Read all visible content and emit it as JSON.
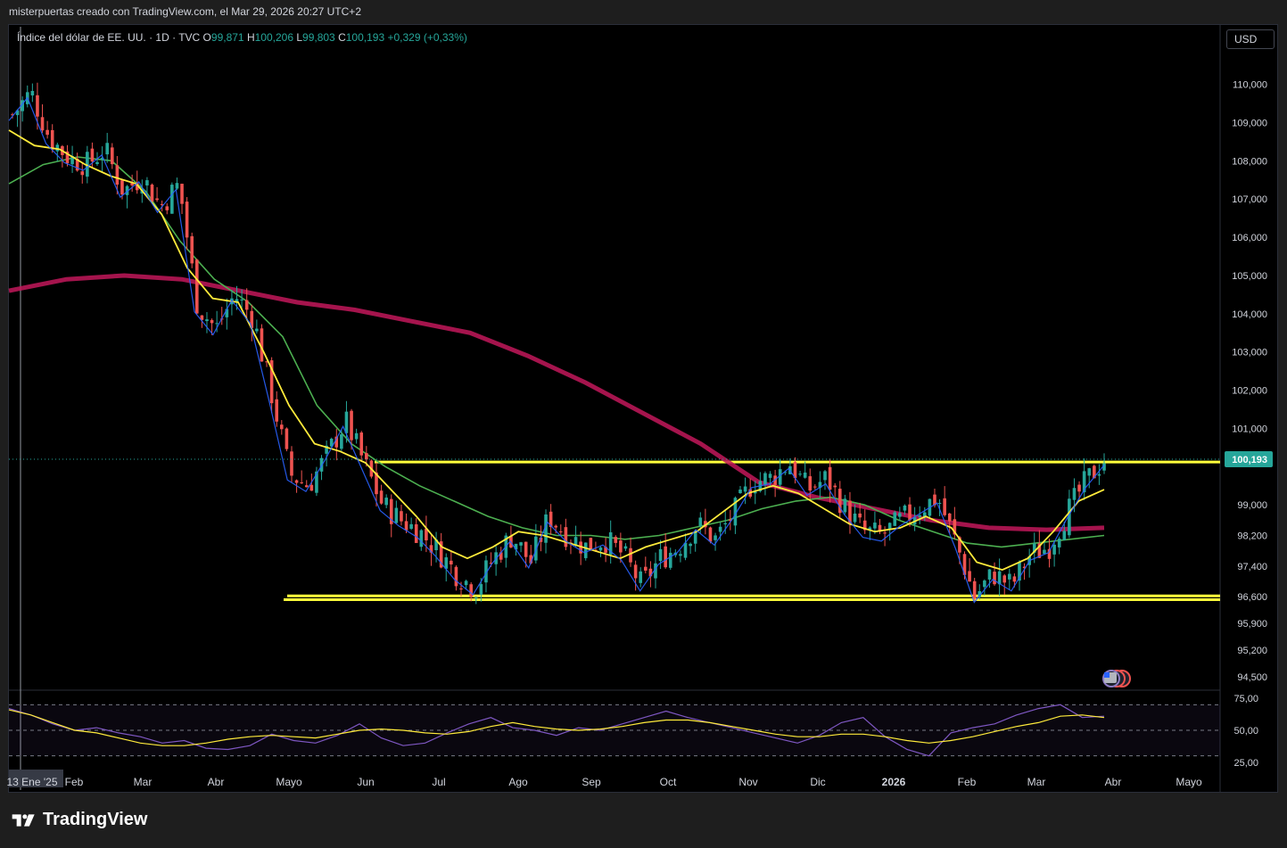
{
  "header": {
    "caption": "misterpuertas creado con TradingView.com, el Mar 29, 2026 20:27 UTC+2"
  },
  "symbol": {
    "name": "Índice del dólar de EE. UU. · 1D · TVC",
    "o_label": "O",
    "o_value": "99,871",
    "h_label": "H",
    "h_value": "100,206",
    "l_label": "L",
    "l_value": "99,803",
    "c_label": "C",
    "c_value": "100,193",
    "change": "+0,329 (+0,33%)"
  },
  "currency_button": "USD",
  "footer": {
    "brand": "TradingView"
  },
  "colors": {
    "background": "#000000",
    "up_candle": "#26a69a",
    "down_candle": "#ef5350",
    "yellow_ma": "#ffeb3b",
    "blue_ma": "#2962ff",
    "green_ma": "#4caf50",
    "red_ma": "#c2185b",
    "level_lines": "#ffff3b",
    "rsi": "#7e57c2",
    "rsi_ma": "#ffeb3b",
    "price_label_bg": "#26a69a"
  },
  "chart_data": {
    "type": "candlestick",
    "title": "Índice del dólar de EE. UU.",
    "timeframe": "1D",
    "source": "TVC",
    "last_price": 100.193,
    "last_price_label": "100,193",
    "ylim": [
      94.2,
      110.9
    ],
    "y_ticks": [
      {
        "value": 110.0,
        "label": "110,000"
      },
      {
        "value": 109.0,
        "label": "109,000"
      },
      {
        "value": 108.0,
        "label": "108,000"
      },
      {
        "value": 107.0,
        "label": "107,000"
      },
      {
        "value": 106.0,
        "label": "106,000"
      },
      {
        "value": 105.0,
        "label": "105,000"
      },
      {
        "value": 104.0,
        "label": "104,000"
      },
      {
        "value": 103.0,
        "label": "103,000"
      },
      {
        "value": 102.0,
        "label": "102,000"
      },
      {
        "value": 101.0,
        "label": "101,000"
      },
      {
        "value": 99.0,
        "label": "99,000"
      },
      {
        "value": 98.2,
        "label": "98,200"
      },
      {
        "value": 97.4,
        "label": "97,400"
      },
      {
        "value": 96.6,
        "label": "96,600"
      },
      {
        "value": 95.9,
        "label": "95,900"
      },
      {
        "value": 95.2,
        "label": "95,200"
      },
      {
        "value": 94.5,
        "label": "94,500"
      }
    ],
    "x_ticks": [
      "13 Ene '25",
      "Feb",
      "Mar",
      "Abr",
      "Mayo",
      "Jun",
      "Jul",
      "Ago",
      "Sep",
      "Oct",
      "Nov",
      "Dic",
      "2026",
      "Feb",
      "Mar",
      "Abr",
      "Mayo"
    ],
    "series": [
      {
        "name": "Price",
        "values": [
          109.2,
          109.8,
          108.6,
          108.1,
          107.9,
          108.3,
          107.2,
          107.6,
          106.8,
          107.4,
          104.2,
          103.6,
          104.5,
          103.9,
          101.9,
          99.8,
          99.5,
          100.3,
          101.2,
          100.1,
          99.0,
          98.6,
          98.3,
          97.8,
          97.2,
          96.8,
          97.6,
          98.2,
          97.5,
          98.7,
          98.2,
          97.9,
          98.1,
          97.7,
          96.9,
          97.6,
          97.9,
          98.5,
          98.1,
          98.8,
          99.6,
          99.7,
          100.1,
          99.4,
          99.7,
          98.9,
          98.3,
          98.2,
          98.6,
          98.9,
          99.2,
          98.0,
          96.6,
          97.2,
          96.9,
          97.7,
          97.9,
          98.8,
          99.6,
          100.193
        ]
      },
      {
        "name": "MA 20",
        "values": [
          108.8,
          108.4,
          108.3,
          107.9,
          107.6,
          107.4,
          106.6,
          105.2,
          104.4,
          104.3,
          103.0,
          101.6,
          100.6,
          100.4,
          100.1,
          99.4,
          98.7,
          97.9,
          97.6,
          97.9,
          98.3,
          98.2,
          98.0,
          97.8,
          97.6,
          97.9,
          98.1,
          98.3,
          98.8,
          99.3,
          99.5,
          99.3,
          98.9,
          98.5,
          98.3,
          98.4,
          98.7,
          98.4,
          97.5,
          97.3,
          97.6,
          98.3,
          99.1,
          99.4
        ]
      },
      {
        "name": "MA 50",
        "values": [
          107.4,
          107.9,
          108.1,
          108.0,
          107.2,
          105.9,
          104.9,
          104.3,
          103.4,
          101.6,
          100.6,
          100.0,
          99.5,
          99.1,
          98.7,
          98.4,
          98.2,
          98.2,
          98.1,
          98.2,
          98.4,
          98.6,
          98.9,
          99.1,
          99.2,
          99.0,
          98.6,
          98.3,
          98.0,
          97.9,
          98.0,
          98.1,
          98.2
        ]
      },
      {
        "name": "MA 200",
        "values": [
          104.6,
          104.9,
          105.0,
          104.9,
          104.6,
          104.3,
          104.1,
          103.8,
          103.5,
          102.9,
          102.2,
          101.4,
          100.6,
          99.6,
          99.2,
          98.9,
          98.6,
          98.4,
          98.35,
          98.4
        ]
      }
    ],
    "horizontal_levels": [
      100.12,
      96.52,
      96.62
    ],
    "rsi": {
      "ylim": [
        20,
        80
      ],
      "y_ticks": [
        {
          "value": 75,
          "label": "75,00"
        },
        {
          "value": 50,
          "label": "50,00"
        },
        {
          "value": 25,
          "label": "25,00"
        }
      ],
      "band": [
        70,
        30
      ],
      "values": [
        67,
        62,
        55,
        50,
        52,
        48,
        45,
        40,
        42,
        36,
        35,
        38,
        47,
        42,
        40,
        46,
        55,
        44,
        38,
        40,
        48,
        55,
        60,
        52,
        50,
        46,
        52,
        50,
        55,
        60,
        65,
        60,
        56,
        52,
        48,
        44,
        40,
        46,
        56,
        60,
        45,
        35,
        30,
        48,
        52,
        55,
        62,
        67,
        70,
        60,
        61
      ],
      "ma_values": [
        66,
        62,
        56,
        50,
        48,
        44,
        40,
        38,
        38,
        40,
        43,
        45,
        46,
        45,
        44,
        47,
        50,
        51,
        50,
        48,
        47,
        49,
        53,
        56,
        53,
        51,
        50,
        51,
        53,
        56,
        58,
        58,
        56,
        53,
        50,
        47,
        45,
        45,
        47,
        47,
        45,
        42,
        40,
        42,
        45,
        49,
        53,
        56,
        61,
        62,
        60
      ]
    }
  }
}
